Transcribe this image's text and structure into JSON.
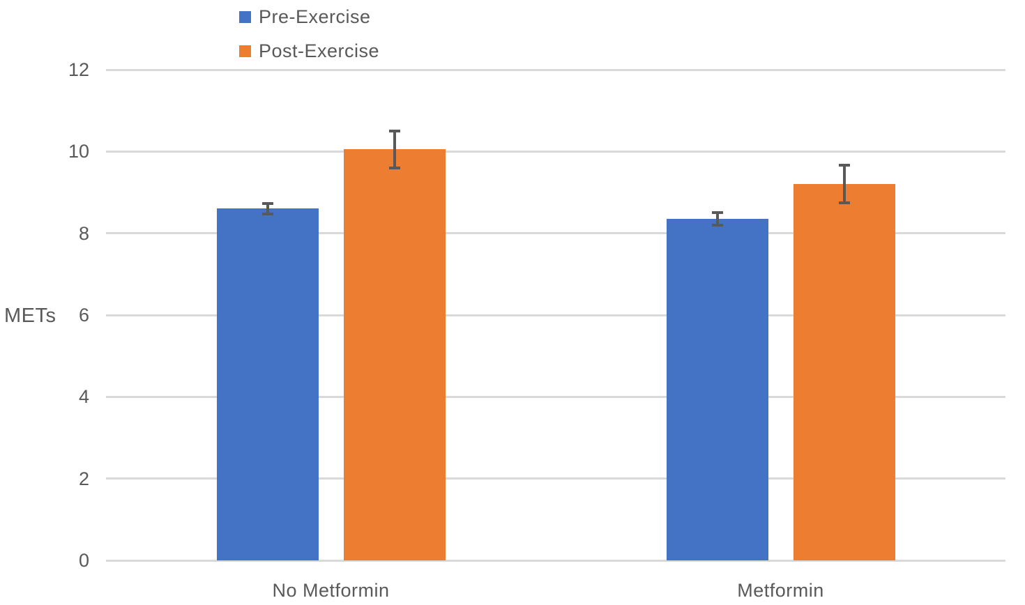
{
  "chart_data": {
    "type": "bar",
    "categories": [
      "No Metformin",
      "Metformin"
    ],
    "series": [
      {
        "name": "Pre-Exercise",
        "color": "#4472C4",
        "values": [
          8.6,
          8.35
        ],
        "errors": [
          0.12,
          0.15
        ]
      },
      {
        "name": "Post-Exercise",
        "color": "#ED7D31",
        "values": [
          10.05,
          9.2
        ],
        "errors": [
          0.45,
          0.46
        ]
      }
    ],
    "title": "",
    "xlabel": "",
    "ylabel": "METs",
    "ylim": [
      0,
      12
    ],
    "yticks": [
      0,
      2,
      4,
      6,
      8,
      10,
      12
    ],
    "grid": true,
    "legend_position": "top-left",
    "colors": {
      "gridline": "#D9D9D9",
      "error_bar": "#595959",
      "text": "#595959",
      "background": "#FFFFFF"
    }
  }
}
